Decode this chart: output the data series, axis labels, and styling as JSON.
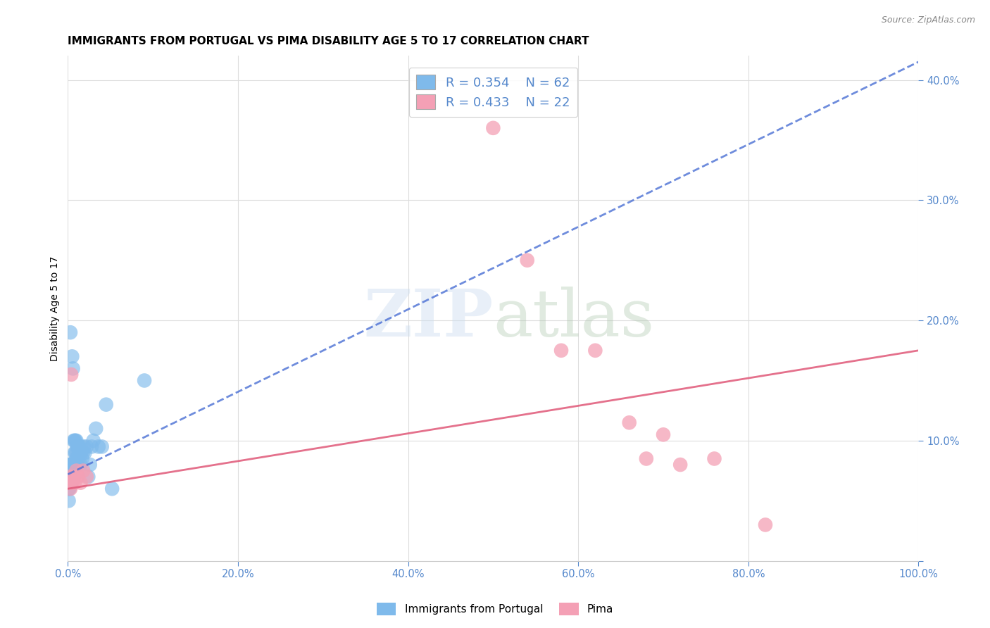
{
  "title": "IMMIGRANTS FROM PORTUGAL VS PIMA DISABILITY AGE 5 TO 17 CORRELATION CHART",
  "source_text": "Source: ZipAtlas.com",
  "ylabel": "Disability Age 5 to 17",
  "xlim": [
    0,
    1.0
  ],
  "ylim": [
    0,
    0.42
  ],
  "legend_r1": "0.354",
  "legend_n1": "62",
  "legend_r2": "0.433",
  "legend_n2": "22",
  "label1": "Immigrants from Portugal",
  "label2": "Pima",
  "color1": "#7fbaeb",
  "color2": "#f4a0b5",
  "trendline1_color": "#4a6fd4",
  "trendline2_color": "#e05878",
  "background_color": "#ffffff",
  "grid_color": "#dddddd",
  "tick_color": "#5588cc",
  "blue_scatter_x": [
    0.001,
    0.001,
    0.001,
    0.001,
    0.001,
    0.002,
    0.002,
    0.002,
    0.002,
    0.002,
    0.003,
    0.003,
    0.003,
    0.003,
    0.004,
    0.004,
    0.004,
    0.004,
    0.005,
    0.005,
    0.005,
    0.005,
    0.006,
    0.006,
    0.006,
    0.007,
    0.007,
    0.007,
    0.008,
    0.008,
    0.008,
    0.009,
    0.009,
    0.009,
    0.01,
    0.01,
    0.01,
    0.011,
    0.011,
    0.012,
    0.012,
    0.013,
    0.013,
    0.014,
    0.015,
    0.015,
    0.016,
    0.017,
    0.018,
    0.019,
    0.02,
    0.022,
    0.024,
    0.026,
    0.028,
    0.03,
    0.033,
    0.036,
    0.04,
    0.045,
    0.052,
    0.09
  ],
  "blue_scatter_y": [
    0.06,
    0.07,
    0.075,
    0.08,
    0.05,
    0.065,
    0.07,
    0.075,
    0.08,
    0.06,
    0.065,
    0.07,
    0.075,
    0.19,
    0.065,
    0.07,
    0.075,
    0.08,
    0.07,
    0.075,
    0.08,
    0.17,
    0.07,
    0.075,
    0.16,
    0.07,
    0.08,
    0.1,
    0.08,
    0.09,
    0.1,
    0.08,
    0.09,
    0.1,
    0.085,
    0.09,
    0.1,
    0.08,
    0.095,
    0.085,
    0.095,
    0.09,
    0.095,
    0.09,
    0.08,
    0.095,
    0.09,
    0.085,
    0.09,
    0.095,
    0.09,
    0.095,
    0.07,
    0.08,
    0.095,
    0.1,
    0.11,
    0.095,
    0.095,
    0.13,
    0.06,
    0.15
  ],
  "pink_scatter_x": [
    0.001,
    0.002,
    0.003,
    0.004,
    0.005,
    0.006,
    0.008,
    0.01,
    0.012,
    0.015,
    0.018,
    0.022,
    0.5,
    0.54,
    0.58,
    0.62,
    0.66,
    0.68,
    0.7,
    0.72,
    0.76,
    0.82
  ],
  "pink_scatter_y": [
    0.065,
    0.07,
    0.06,
    0.155,
    0.065,
    0.07,
    0.065,
    0.075,
    0.07,
    0.065,
    0.075,
    0.07,
    0.36,
    0.25,
    0.175,
    0.175,
    0.115,
    0.085,
    0.105,
    0.08,
    0.085,
    0.03
  ],
  "blue_trend_x0": 0.0,
  "blue_trend_y0": 0.072,
  "blue_trend_x1": 1.0,
  "blue_trend_y1": 0.415,
  "pink_trend_x0": 0.0,
  "pink_trend_y0": 0.06,
  "pink_trend_x1": 1.0,
  "pink_trend_y1": 0.175
}
